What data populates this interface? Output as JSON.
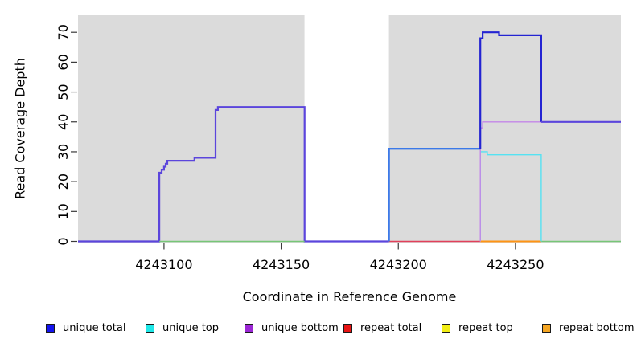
{
  "figure": {
    "xlabel": "Coordinate in Reference Genome",
    "ylabel": "Read Coverage Depth"
  },
  "chart_data": {
    "type": "line",
    "subtype": "step-coverage",
    "title": "",
    "xlabel": "Coordinate in Reference Genome",
    "ylabel": "Read Coverage Depth",
    "x_domain": [
      4243063.3,
      4243295
    ],
    "y_domain": [
      0,
      75.7
    ],
    "grid": false,
    "x_ticks": [
      {
        "value": 4243100,
        "label": "4243100"
      },
      {
        "value": 4243150,
        "label": "4243150"
      },
      {
        "value": 4243200,
        "label": "4243200"
      },
      {
        "value": 4243250,
        "label": "4243250"
      }
    ],
    "y_ticks": [
      {
        "value": 0,
        "label": "0"
      },
      {
        "value": 10,
        "label": "10"
      },
      {
        "value": 20,
        "label": "20"
      },
      {
        "value": 30,
        "label": "30"
      },
      {
        "value": 40,
        "label": "40"
      },
      {
        "value": 50,
        "label": "50"
      },
      {
        "value": 60,
        "label": "60"
      },
      {
        "value": 70,
        "label": "70"
      }
    ],
    "background_regions": [
      {
        "name": "covered-region-left",
        "x1": 4243063.3,
        "x2": 4243160,
        "color": "#DBDBDB"
      },
      {
        "name": "uncovered-gap",
        "x1": 4243160,
        "x2": 4243196,
        "color": "#FFFFFF"
      },
      {
        "name": "covered-region-right",
        "x1": 4243196,
        "x2": 4243295,
        "color": "#DBDBDB"
      }
    ],
    "series": [
      {
        "name": "unique total",
        "color": "#2222DD",
        "step_points": [
          [
            4243063,
            0
          ],
          [
            4243098,
            0
          ],
          [
            4243098,
            23
          ],
          [
            4243099,
            24
          ],
          [
            4243100,
            25
          ],
          [
            4243101,
            26
          ],
          [
            4243102,
            27
          ],
          [
            4243113,
            28
          ],
          [
            4243122,
            45
          ],
          [
            4243160,
            45
          ],
          [
            4243160,
            0
          ],
          [
            4243196,
            0
          ],
          [
            4243196,
            31
          ],
          [
            4243235,
            31
          ],
          [
            4243235,
            68
          ],
          [
            4243236,
            70
          ],
          [
            4243243,
            69
          ],
          [
            4243261,
            69
          ],
          [
            4243261,
            40
          ],
          [
            4243295,
            40
          ]
        ]
      },
      {
        "name": "unique top",
        "color": "#22E8E8",
        "step_points": [
          [
            4243063,
            0
          ],
          [
            4243235,
            0
          ],
          [
            4243235,
            30
          ],
          [
            4243238,
            29
          ],
          [
            4243261,
            29
          ],
          [
            4243261,
            0
          ],
          [
            4243295,
            0
          ]
        ]
      },
      {
        "name": "unique bottom",
        "color": "#9C27D6",
        "step_points": [
          [
            4243063,
            0
          ],
          [
            4243098,
            0
          ],
          [
            4243098,
            23
          ],
          [
            4243099,
            24
          ],
          [
            4243100,
            25
          ],
          [
            4243101,
            26
          ],
          [
            4243102,
            27
          ],
          [
            4243113,
            28
          ],
          [
            4243122,
            45
          ],
          [
            4243160,
            45
          ],
          [
            4243160,
            0
          ],
          [
            4243235,
            0
          ],
          [
            4243235,
            38
          ],
          [
            4243236,
            40
          ],
          [
            4243295,
            40
          ]
        ]
      },
      {
        "name": "repeat total",
        "color": "#E81414",
        "step_points": [
          [
            4243196,
            0
          ],
          [
            4243235,
            0
          ]
        ]
      },
      {
        "name": "repeat top",
        "color": "#F2EE15",
        "step_points": []
      },
      {
        "name": "repeat bottom",
        "color": "#F5A623",
        "step_points": [
          [
            4243235,
            0
          ],
          [
            4243261,
            0
          ]
        ]
      }
    ],
    "rendered_lines": [
      {
        "name": "unique-total-bottom-overlap-left",
        "color": "#5B45DC",
        "width": 2.2,
        "points": [
          [
            4243063.3,
            0
          ],
          [
            4243098,
            0
          ],
          [
            4243098,
            23
          ],
          [
            4243099,
            23
          ],
          [
            4243099,
            24
          ],
          [
            4243100,
            24
          ],
          [
            4243100,
            25
          ],
          [
            4243100.7,
            25
          ],
          [
            4243100.7,
            26
          ],
          [
            4243101.4,
            26
          ],
          [
            4243101.4,
            27
          ],
          [
            4243113,
            27
          ],
          [
            4243113,
            28
          ],
          [
            4243122,
            28
          ],
          [
            4243122,
            44
          ],
          [
            4243123,
            44
          ],
          [
            4243123,
            45
          ],
          [
            4243160,
            45
          ],
          [
            4243160,
            0
          ],
          [
            4243196,
            0
          ]
        ]
      },
      {
        "name": "repeat-total-baseline",
        "color": "#E2405A",
        "width": 1.6,
        "points": [
          [
            4243196,
            0
          ],
          [
            4243235,
            0
          ]
        ]
      },
      {
        "name": "repeat-bottom-baseline",
        "color": "#FF9414",
        "width": 2,
        "points": [
          [
            4243235,
            0
          ],
          [
            4243261,
            0
          ]
        ]
      },
      {
        "name": "baseline-green-left",
        "color": "#77C677",
        "width": 1.6,
        "points": [
          [
            4243098,
            0
          ],
          [
            4243160,
            0
          ]
        ]
      },
      {
        "name": "baseline-green-right",
        "color": "#77C677",
        "width": 1.6,
        "points": [
          [
            4243261,
            0
          ],
          [
            4243295,
            0
          ]
        ]
      },
      {
        "name": "unique-top-steps",
        "color": "#55E2F2",
        "width": 1.4,
        "points": [
          [
            4243235,
            0
          ],
          [
            4243235,
            30
          ],
          [
            4243238,
            30
          ],
          [
            4243238,
            29
          ],
          [
            4243261,
            29
          ],
          [
            4243261,
            0
          ]
        ]
      },
      {
        "name": "unique-bottom-steps",
        "color": "#C487E8",
        "width": 1.4,
        "points": [
          [
            4243235,
            0
          ],
          [
            4243235,
            38
          ],
          [
            4243236,
            38
          ],
          [
            4243236,
            40
          ],
          [
            4243295,
            40
          ]
        ]
      },
      {
        "name": "unique-total-31-plateau",
        "color": "#3C79E8",
        "width": 2.4,
        "points": [
          [
            4243196,
            0
          ],
          [
            4243196,
            31
          ],
          [
            4243235,
            31
          ]
        ]
      },
      {
        "name": "unique-total-peak",
        "color": "#2424D2",
        "width": 2.2,
        "points": [
          [
            4243235,
            31
          ],
          [
            4243235,
            68
          ],
          [
            4243236,
            68
          ],
          [
            4243236,
            70
          ],
          [
            4243243,
            70
          ],
          [
            4243243,
            69
          ],
          [
            4243261,
            69
          ],
          [
            4243261,
            40
          ]
        ]
      },
      {
        "name": "unique-total-bottom-overlap-tail",
        "color": "#5B45DC",
        "width": 2.2,
        "points": [
          [
            4243261,
            40
          ],
          [
            4243295,
            40
          ]
        ]
      }
    ],
    "legend_position": "bottom"
  },
  "legend": {
    "items": [
      {
        "label": "unique total",
        "color": "#1414EE"
      },
      {
        "label": "unique top",
        "color": "#1FE8E8"
      },
      {
        "label": "unique bottom",
        "color": "#9C27D6"
      },
      {
        "label": "repeat total",
        "color": "#E81414"
      },
      {
        "label": "repeat top",
        "color": "#F2EE15"
      },
      {
        "label": "repeat bottom",
        "color": "#F5A623"
      }
    ]
  }
}
